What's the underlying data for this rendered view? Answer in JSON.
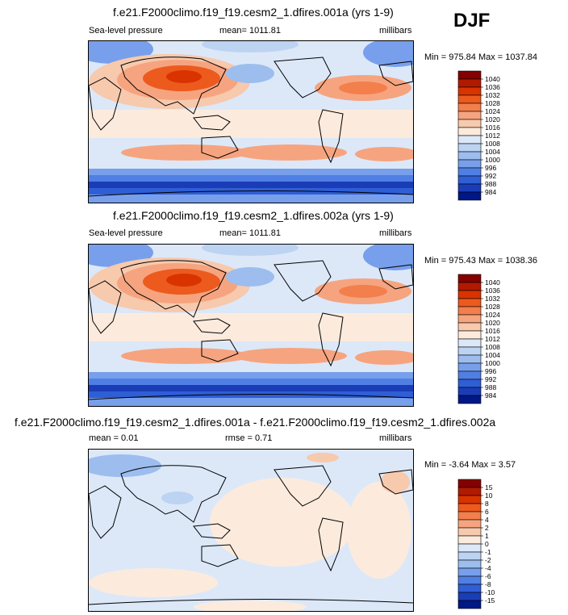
{
  "season": "DJF",
  "chart_data": [
    {
      "type": "heatmap",
      "title": "f.e21.F2000climo.f19_f19.cesm2_1.dfires.001a (yrs 1-9)",
      "left_label": "Sea-level pressure",
      "center_label": "mean= 1011.81",
      "units": "millibars",
      "range_label": "Min = 975.84 Max = 1037.84",
      "min": 975.84,
      "max": 1037.84,
      "mean": 1011.81,
      "levels": [
        "1040",
        "1036",
        "1032",
        "1028",
        "1024",
        "1020",
        "1016",
        "1012",
        "1008",
        "1004",
        "1000",
        "996",
        "992",
        "988",
        "984"
      ],
      "colors": [
        "#850000",
        "#b11a00",
        "#d93300",
        "#ec5a1e",
        "#f37f4c",
        "#f6a47f",
        "#f7c9ad",
        "#fcebdd",
        "#dce8f8",
        "#bdd3f2",
        "#9cbdee",
        "#789feb",
        "#507fe4",
        "#2f5ed5",
        "#1a3db7",
        "#001787"
      ]
    },
    {
      "type": "heatmap",
      "title": "f.e21.F2000climo.f19_f19.cesm2_1.dfires.002a (yrs 1-9)",
      "left_label": "Sea-level pressure",
      "center_label": "mean= 1011.81",
      "units": "millibars",
      "range_label": "Min = 975.43 Max = 1038.36",
      "min": 975.43,
      "max": 1038.36,
      "mean": 1011.81,
      "levels": [
        "1040",
        "1036",
        "1032",
        "1028",
        "1024",
        "1020",
        "1016",
        "1012",
        "1008",
        "1004",
        "1000",
        "996",
        "992",
        "988",
        "984"
      ],
      "colors": [
        "#850000",
        "#b11a00",
        "#d93300",
        "#ec5a1e",
        "#f37f4c",
        "#f6a47f",
        "#f7c9ad",
        "#fcebdd",
        "#dce8f8",
        "#bdd3f2",
        "#9cbdee",
        "#789feb",
        "#507fe4",
        "#2f5ed5",
        "#1a3db7",
        "#001787"
      ]
    },
    {
      "type": "heatmap",
      "title": "f.e21.F2000climo.f19_f19.cesm2_1.dfires.001a - f.e21.F2000climo.f19_f19.cesm2_1.dfires.002a",
      "left_label": "mean =   0.01",
      "center_label": "rmse =   0.71",
      "units": "millibars",
      "range_label": "Min =  -3.64 Max =   3.57",
      "min": -3.64,
      "max": 3.57,
      "mean": 0.01,
      "rmse": 0.71,
      "levels": [
        "15",
        "10",
        "8",
        "6",
        "4",
        "2",
        "1",
        "0",
        "-1",
        "-2",
        "-4",
        "-6",
        "-8",
        "-10",
        "-15"
      ],
      "colors": [
        "#850000",
        "#b11a00",
        "#d93300",
        "#ec5a1e",
        "#f37f4c",
        "#f6a47f",
        "#f7c9ad",
        "#fcebdd",
        "#dce8f8",
        "#bdd3f2",
        "#9cbdee",
        "#789feb",
        "#507fe4",
        "#2f5ed5",
        "#1a3db7",
        "#001787"
      ]
    }
  ]
}
